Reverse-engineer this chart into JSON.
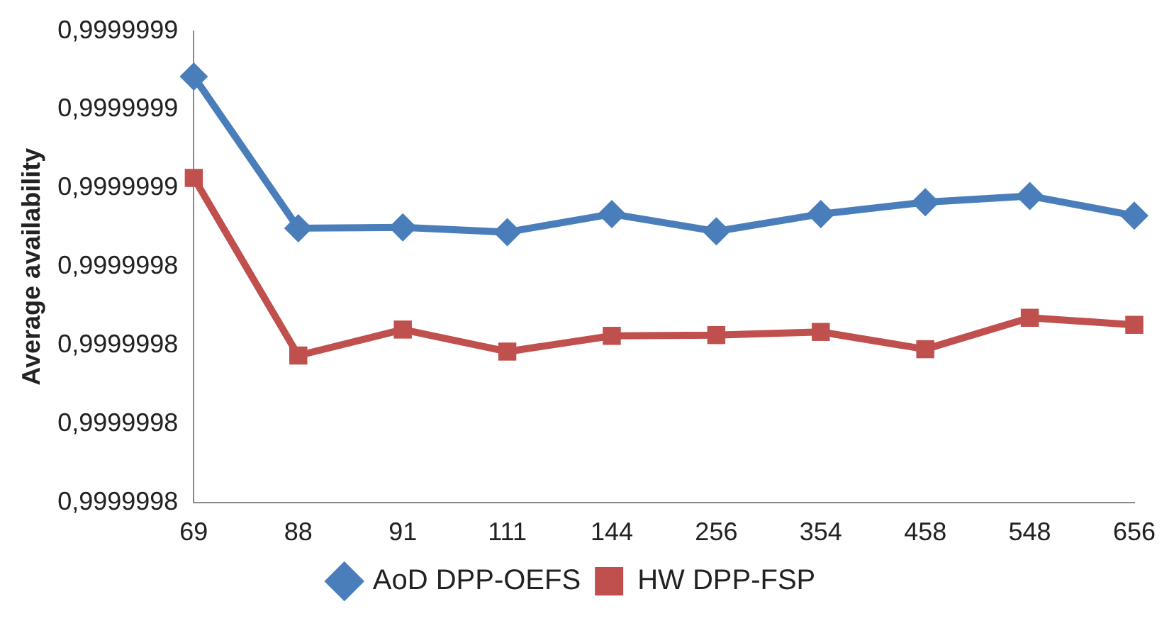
{
  "chart_data": {
    "type": "line",
    "ylabel": "Average availability",
    "categories": [
      "69",
      "88",
      "91",
      "111",
      "144",
      "256",
      "354",
      "458",
      "548",
      "656"
    ],
    "series": [
      {
        "name": "AoD DPP-OEFS",
        "color": "#4a7ebb",
        "marker": "diamond",
        "values": [
          0.9999998642,
          0.9999998449,
          0.999999845,
          0.9999998444,
          0.9999998467,
          0.9999998445,
          0.9999998467,
          0.9999998482,
          0.999999849,
          0.9999998465
        ]
      },
      {
        "name": "HW DPP-FSP",
        "color": "#c0504d",
        "marker": "square",
        "values": [
          0.9999998513,
          0.9999998287,
          0.999999832,
          0.9999998292,
          0.9999998312,
          0.9999998313,
          0.9999998317,
          0.9999998295,
          0.9999998335,
          0.9999998326
        ]
      }
    ],
    "ylim": [
      0.99999981,
      0.99999987
    ],
    "yticks": [
      {
        "value": 0.99999981,
        "label": "0,9999998"
      },
      {
        "value": 0.99999982,
        "label": "0,9999998"
      },
      {
        "value": 0.99999983,
        "label": "0,9999998"
      },
      {
        "value": 0.99999984,
        "label": "0,9999998"
      },
      {
        "value": 0.99999985,
        "label": "0,9999999"
      },
      {
        "value": 0.99999986,
        "label": "0,9999999"
      },
      {
        "value": 0.99999987,
        "label": "0,9999999"
      }
    ],
    "grid": false,
    "legend": "bottom",
    "line_style": "solid"
  }
}
